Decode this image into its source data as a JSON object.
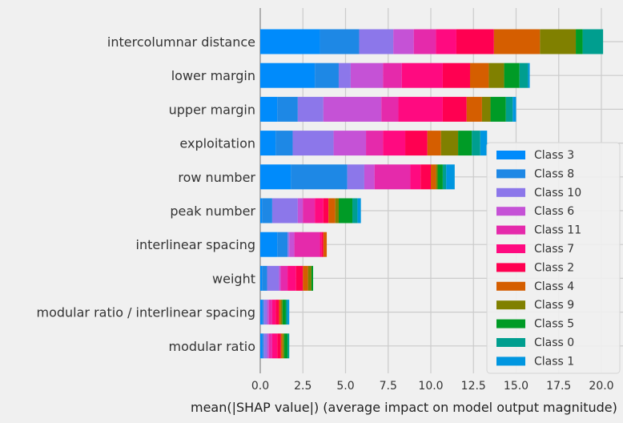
{
  "chart_data": {
    "type": "bar",
    "orientation": "horizontal",
    "stacked": true,
    "xlabel": "mean(|SHAP value|) (average impact on model output magnitude)",
    "xlim": [
      0,
      20.7
    ],
    "xticks": [
      "0.0",
      "2.5",
      "5.0",
      "7.5",
      "10.0",
      "12.5",
      "15.0",
      "17.5",
      "20.0"
    ],
    "grid": true,
    "legend_position": "lower-right",
    "categories": [
      "intercolumnar distance",
      "lower margin",
      "upper margin",
      "exploitation",
      "row number",
      "peak number",
      "interlinear spacing",
      "weight",
      "modular ratio / interlinear spacing",
      "modular ratio"
    ],
    "series": [
      {
        "name": "Class 3",
        "color": "#008bfb",
        "values": [
          3.5,
          3.2,
          1.0,
          0.9,
          1.8,
          0.1,
          1.0,
          0.1,
          0.1,
          0.1
        ]
      },
      {
        "name": "Class 8",
        "color": "#1e88e5",
        "values": [
          2.3,
          1.4,
          1.2,
          1.0,
          3.3,
          0.6,
          0.6,
          0.3,
          0.1,
          0.1
        ]
      },
      {
        "name": "Class 10",
        "color": "#8c77ea",
        "values": [
          2.0,
          0.7,
          1.5,
          2.4,
          1.0,
          1.5,
          0.1,
          0.7,
          0.2,
          0.2
        ]
      },
      {
        "name": "Class 6",
        "color": "#c552d6",
        "values": [
          1.2,
          1.9,
          3.4,
          1.9,
          0.6,
          0.3,
          0.3,
          0.1,
          0.1,
          0.1
        ]
      },
      {
        "name": "Class 11",
        "color": "#e52aab",
        "values": [
          1.3,
          1.1,
          1.0,
          1.0,
          2.1,
          0.7,
          1.5,
          0.4,
          0.2,
          0.2
        ]
      },
      {
        "name": "Class 7",
        "color": "#ff0a80",
        "values": [
          1.2,
          2.4,
          2.6,
          1.3,
          0.6,
          0.5,
          0.1,
          0.5,
          0.2,
          0.3
        ]
      },
      {
        "name": "Class 2",
        "color": "#ff0051",
        "values": [
          2.2,
          1.6,
          1.4,
          1.3,
          0.6,
          0.3,
          0.1,
          0.4,
          0.2,
          0.2
        ]
      },
      {
        "name": "Class 4",
        "color": "#d55e00",
        "values": [
          2.7,
          1.1,
          0.9,
          0.8,
          0.3,
          0.4,
          0.2,
          0.3,
          0.1,
          0.1
        ]
      },
      {
        "name": "Class 9",
        "color": "#808000",
        "values": [
          2.1,
          0.9,
          0.5,
          1.0,
          0.1,
          0.2,
          0.0,
          0.2,
          0.1,
          0.1
        ]
      },
      {
        "name": "Class 5",
        "color": "#009b26",
        "values": [
          0.4,
          0.9,
          0.9,
          0.8,
          0.3,
          0.8,
          0.0,
          0.1,
          0.2,
          0.2
        ]
      },
      {
        "name": "Class 0",
        "color": "#009e8f",
        "values": [
          1.2,
          0.5,
          0.4,
          0.5,
          0.2,
          0.3,
          0.0,
          0.0,
          0.1,
          0.1
        ]
      },
      {
        "name": "Class 1",
        "color": "#0096e0",
        "values": [
          0.0,
          0.1,
          0.2,
          0.4,
          0.5,
          0.2,
          0.0,
          0.0,
          0.1,
          0.0
        ]
      }
    ]
  }
}
